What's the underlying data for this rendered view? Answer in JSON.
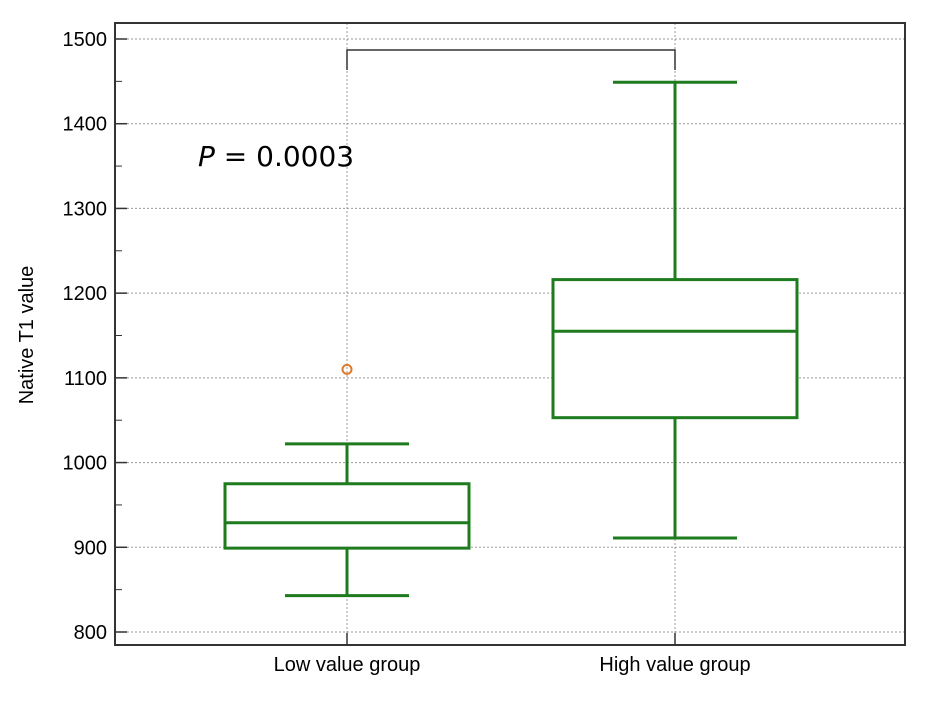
{
  "chart_data": {
    "type": "box",
    "ylabel": "Native T1 value",
    "xlabel": "",
    "ylim": [
      785,
      1520
    ],
    "yticks": [
      800,
      900,
      1000,
      1100,
      1200,
      1300,
      1400,
      1500
    ],
    "ytick_labels": [
      "800",
      "900",
      "1000",
      "1100",
      "1200",
      "1300",
      "1400",
      "1500"
    ],
    "grid": true,
    "categories": [
      "Low value group",
      "High value group"
    ],
    "boxes": [
      {
        "name": "Low value group",
        "whisker_low": 843,
        "q1": 899,
        "median": 929,
        "q3": 975,
        "whisker_high": 1022,
        "outliers": [
          1110
        ]
      },
      {
        "name": "High value group",
        "whisker_low": 911,
        "q1": 1053,
        "median": 1155,
        "q3": 1216,
        "whisker_high": 1449,
        "outliers": []
      }
    ],
    "annotation": {
      "p_label": "P",
      "p_value_text": " = 0.0003",
      "bracket_y": 1487
    },
    "colors": {
      "box": "#1e7b1e",
      "outlier": "#e07b2a",
      "grid": "#9a9a9a",
      "axis": "#333333",
      "bracket": "#333333"
    }
  }
}
